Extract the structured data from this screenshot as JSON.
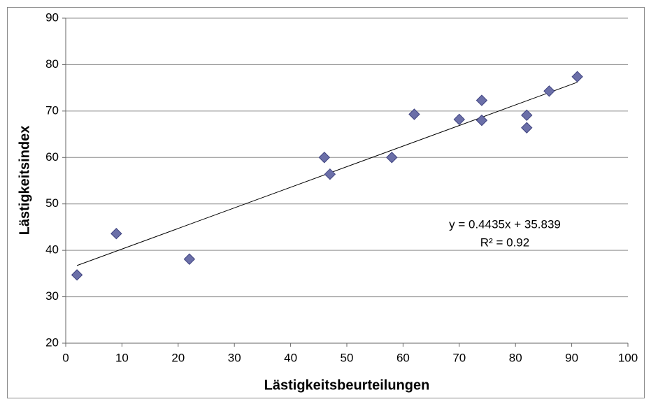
{
  "chart_data": {
    "type": "scatter",
    "x_label": "Lästigkeitsbeurteilungen",
    "y_label": "Lästigkeitsindex",
    "x": [
      2,
      9,
      22,
      46,
      47,
      58,
      62,
      70,
      74,
      74,
      82,
      82,
      86,
      91
    ],
    "values": [
      34.7,
      43.6,
      38.1,
      60,
      56.4,
      60,
      69.3,
      68.2,
      72.3,
      68,
      69.1,
      66.4,
      74.3,
      77.4
    ],
    "color": "#6b6fa8",
    "xlim": [
      0,
      100
    ],
    "xticks": [
      0,
      10,
      20,
      30,
      40,
      50,
      60,
      70,
      80,
      90,
      100
    ],
    "ylim": [
      20,
      90
    ],
    "yticks": [
      20,
      30,
      40,
      50,
      60,
      70,
      80,
      90
    ],
    "grid": true,
    "trendline": {
      "slope": 0.4435,
      "intercept": 35.839,
      "equation": "y = 0.4435x + 35.839",
      "r_squared": "R² = 0.92"
    }
  }
}
